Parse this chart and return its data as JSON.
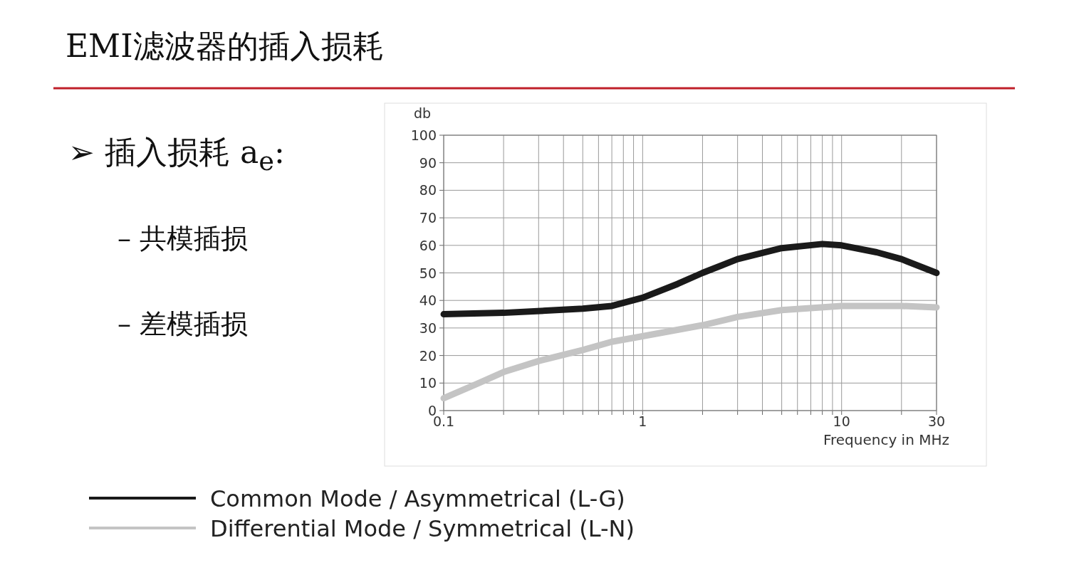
{
  "chart_data": {
    "type": "line",
    "title": "EMI滤波器的插入损耗",
    "annotations": [
      "➢ 插入损耗 a$_{e}$:",
      "– 共模插损",
      "– 差模插损"
    ],
    "ylabel": "db",
    "xlabel": "Frequency in MHz",
    "log": "x",
    "xlim": [
      0.1,
      30
    ],
    "xticks": [
      0.1,
      {
        "value": 0.2,
        "label": null
      },
      {
        "value": 0.3,
        "label": null
      },
      {
        "value": 0.4,
        "label": null
      },
      {
        "value": 0.5,
        "label": null
      },
      {
        "value": 0.6,
        "label": null
      },
      {
        "value": 0.7,
        "label": null
      },
      {
        "value": 0.8,
        "label": null
      },
      {
        "value": 0.9,
        "label": null
      },
      1,
      {
        "value": 2,
        "label": null
      },
      {
        "value": 3,
        "label": null
      },
      {
        "value": 4,
        "label": null
      },
      {
        "value": 5,
        "label": null
      },
      {
        "value": 6,
        "label": null
      },
      {
        "value": 7,
        "label": null
      },
      {
        "value": 8,
        "label": null
      },
      {
        "value": 9,
        "label": null
      },
      10,
      {
        "value": 20,
        "label": null
      },
      30
    ],
    "ylim": [
      0,
      100
    ],
    "yticks": [
      0,
      10,
      20,
      30,
      40,
      50,
      60,
      70,
      80,
      90,
      100
    ],
    "grid": true,
    "legend": "bottom",
    "marker": "none",
    "line_style": "solid",
    "series": [
      {
        "name": "Common Mode / Asymmetrical (L-G)",
        "color": "#1a1a1a",
        "x": [
          0.1,
          0.2,
          0.5,
          0.7,
          1,
          1.5,
          2,
          3,
          5,
          8,
          10,
          15,
          20,
          30
        ],
        "values": [
          35,
          35.5,
          37,
          38,
          41,
          46,
          50,
          55,
          59,
          60.5,
          60,
          57.5,
          55,
          50
        ]
      },
      {
        "name": "Differential Mode / Symmetrical (L-N)",
        "color": "#c4c4c4",
        "x": [
          0.1,
          0.15,
          0.2,
          0.3,
          0.5,
          0.7,
          1,
          2,
          3,
          5,
          10,
          20,
          30
        ],
        "values": [
          4.5,
          10,
          14,
          18,
          22,
          25,
          27,
          31,
          34,
          36.5,
          38,
          38,
          37.5
        ]
      }
    ]
  }
}
